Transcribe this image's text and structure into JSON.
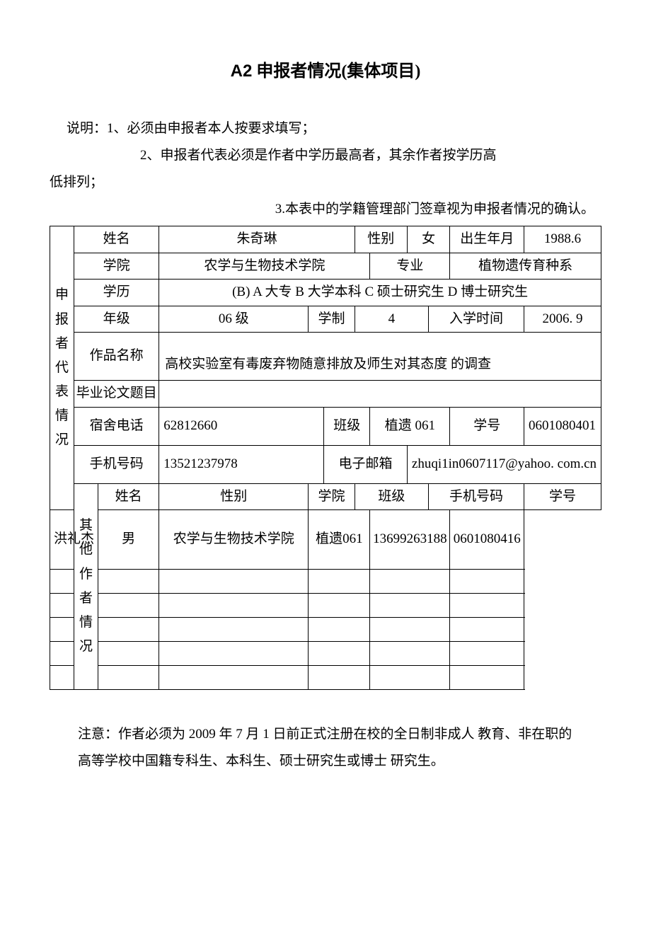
{
  "title_prefix": "A2",
  "title_text": " 申报者情况(集体项目)",
  "instructions": {
    "line1": "说明：1、必须由申报者本人按要求填写；",
    "line2": "2、申报者代表必须是作者中学历最高者，其余作者按学历高",
    "line3": "低排列；",
    "line4": "3.本表中的学籍管理部门签章视为申报者情况的确认。"
  },
  "section_labels": {
    "applicant": "申报者代表情况",
    "others": "其他作者情况"
  },
  "field_labels": {
    "name": "姓名",
    "gender": "性别",
    "birth": "出生年月",
    "college": "学院",
    "major": "专业",
    "education": "学历",
    "grade": "年级",
    "duration": "学制",
    "enroll": "入学时间",
    "work_title": "作品名称",
    "thesis": "毕业论文题目",
    "dorm_phone": "宿舍电话",
    "class": "班级",
    "student_id": "学号",
    "mobile": "手机号码",
    "email": "电子邮箱"
  },
  "applicant": {
    "name": "朱奇琳",
    "gender": "女",
    "birth": "1988.6",
    "college": "农学与生物技术学院",
    "major": "植物遗传育种系",
    "education": "(B) A 大专 B 大学本科 C 硕士研究生 D 博士研究生",
    "grade": "06 级",
    "duration": "4",
    "enroll": "2006. 9",
    "work_title": "高校实验室有毒废弃物随意排放及师生对其态度 的调查",
    "thesis": "",
    "dorm_phone": "62812660",
    "class": "植遗 061",
    "student_id": "0601080401",
    "mobile": "13521237978",
    "email": "zhuqi1in0607117@yahoo. com.cn"
  },
  "others_header": {
    "name": "姓名",
    "gender": "性别",
    "college": "学院",
    "class": "班级",
    "mobile": "手机号码",
    "student_id": "学号"
  },
  "others": [
    {
      "name": "洪礼杰",
      "gender": "男",
      "college": "农学与生物技术学院",
      "class": "植遗061",
      "mobile": "13699263188",
      "student_id": "0601080416"
    },
    {
      "name": "",
      "gender": "",
      "college": "",
      "class": "",
      "mobile": "",
      "student_id": ""
    },
    {
      "name": "",
      "gender": "",
      "college": "",
      "class": "",
      "mobile": "",
      "student_id": ""
    },
    {
      "name": "",
      "gender": "",
      "college": "",
      "class": "",
      "mobile": "",
      "student_id": ""
    },
    {
      "name": "",
      "gender": "",
      "college": "",
      "class": "",
      "mobile": "",
      "student_id": ""
    },
    {
      "name": "",
      "gender": "",
      "college": "",
      "class": "",
      "mobile": "",
      "student_id": ""
    }
  ],
  "footnote": "注意：作者必须为 2009 年 7 月 1 日前正式注册在校的全日制非成人 教育、非在职的高等学校中国籍专科生、本科生、硕士研究生或博士 研究生。"
}
